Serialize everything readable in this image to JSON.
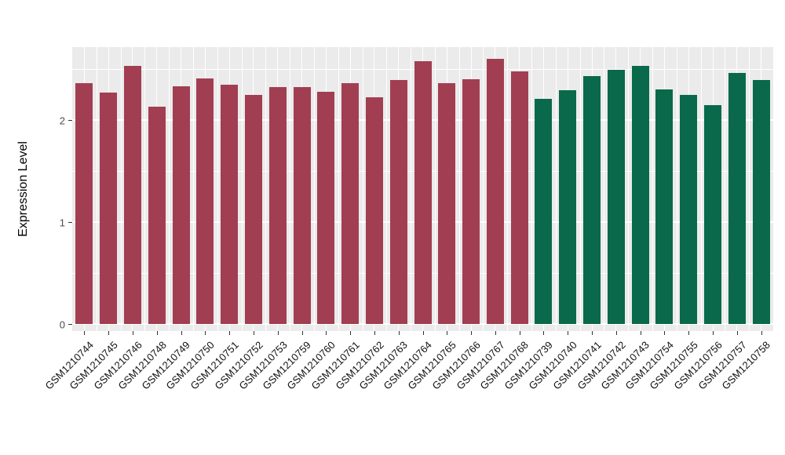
{
  "chart_data": {
    "type": "bar",
    "title": "",
    "xlabel": "",
    "ylabel": "Expression Level",
    "ylim": [
      0,
      2.7
    ],
    "yticks": [
      0,
      1,
      2
    ],
    "grid": true,
    "legend": false,
    "panel_background": "#EBEBEB",
    "gridline_color": "#FFFFFF",
    "colors": {
      "group1": "#A23E52",
      "group2": "#09694A"
    },
    "bars": [
      {
        "label": "GSM1210744",
        "value": 2.36,
        "group": "group1"
      },
      {
        "label": "GSM1210745",
        "value": 2.27,
        "group": "group1"
      },
      {
        "label": "GSM1210746",
        "value": 2.53,
        "group": "group1"
      },
      {
        "label": "GSM1210748",
        "value": 2.13,
        "group": "group1"
      },
      {
        "label": "GSM1210749",
        "value": 2.33,
        "group": "group1"
      },
      {
        "label": "GSM1210750",
        "value": 2.41,
        "group": "group1"
      },
      {
        "label": "GSM1210751",
        "value": 2.35,
        "group": "group1"
      },
      {
        "label": "GSM1210752",
        "value": 2.25,
        "group": "group1"
      },
      {
        "label": "GSM1210753",
        "value": 2.32,
        "group": "group1"
      },
      {
        "label": "GSM1210759",
        "value": 2.32,
        "group": "group1"
      },
      {
        "label": "GSM1210760",
        "value": 2.28,
        "group": "group1"
      },
      {
        "label": "GSM1210761",
        "value": 2.36,
        "group": "group1"
      },
      {
        "label": "GSM1210762",
        "value": 2.22,
        "group": "group1"
      },
      {
        "label": "GSM1210763",
        "value": 2.39,
        "group": "group1"
      },
      {
        "label": "GSM1210764",
        "value": 2.58,
        "group": "group1"
      },
      {
        "label": "GSM1210765",
        "value": 2.36,
        "group": "group1"
      },
      {
        "label": "GSM1210766",
        "value": 2.4,
        "group": "group1"
      },
      {
        "label": "GSM1210767",
        "value": 2.6,
        "group": "group1"
      },
      {
        "label": "GSM1210768",
        "value": 2.48,
        "group": "group1"
      },
      {
        "label": "GSM1210739",
        "value": 2.21,
        "group": "group2"
      },
      {
        "label": "GSM1210740",
        "value": 2.29,
        "group": "group2"
      },
      {
        "label": "GSM1210741",
        "value": 2.43,
        "group": "group2"
      },
      {
        "label": "GSM1210742",
        "value": 2.49,
        "group": "group2"
      },
      {
        "label": "GSM1210743",
        "value": 2.53,
        "group": "group2"
      },
      {
        "label": "GSM1210754",
        "value": 2.3,
        "group": "group2"
      },
      {
        "label": "GSM1210755",
        "value": 2.25,
        "group": "group2"
      },
      {
        "label": "GSM1210756",
        "value": 2.15,
        "group": "group2"
      },
      {
        "label": "GSM1210757",
        "value": 2.46,
        "group": "group2"
      },
      {
        "label": "GSM1210758",
        "value": 2.39,
        "group": "group2"
      }
    ]
  }
}
